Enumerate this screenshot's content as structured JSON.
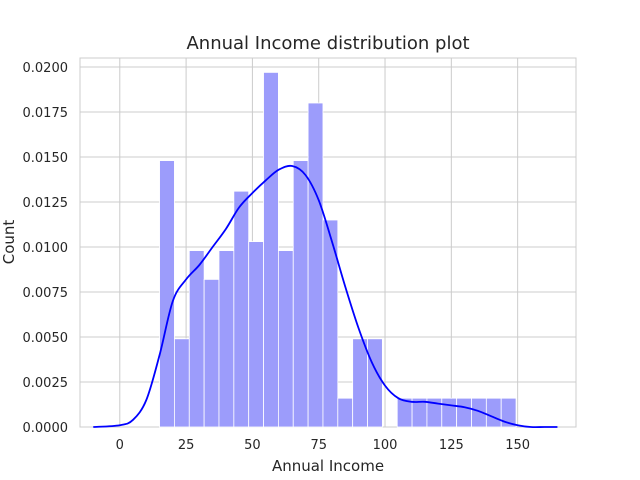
{
  "chart_data": {
    "type": "bar",
    "title": "Annual Income distribution plot",
    "xlabel": "Annual Income",
    "ylabel": "Count",
    "xlim": [
      -15,
      172
    ],
    "ylim": [
      0,
      0.0205
    ],
    "xticks": [
      0,
      25,
      50,
      75,
      100,
      125,
      150
    ],
    "xtick_labels": [
      "0",
      "25",
      "50",
      "75",
      "100",
      "125",
      "150"
    ],
    "yticks": [
      0,
      0.0025,
      0.005,
      0.0075,
      0.01,
      0.0125,
      0.015,
      0.0175,
      0.02
    ],
    "ytick_labels": [
      "0.0000",
      "0.0025",
      "0.0050",
      "0.0075",
      "0.0100",
      "0.0125",
      "0.0150",
      "0.0175",
      "0.0200"
    ],
    "grid": true,
    "histogram": {
      "bin_width": 5.6,
      "bin_start": 15,
      "densities": [
        0.0148,
        0.0049,
        0.0098,
        0.0082,
        0.0098,
        0.0131,
        0.0103,
        0.0197,
        0.0098,
        0.0148,
        0.018,
        0.0115,
        0.0016,
        0.0049,
        0.0049,
        0.0,
        0.0016,
        0.0016,
        0.0016,
        0.0016,
        0.0016,
        0.0016,
        0.0016,
        0.0016
      ],
      "color": "#9c9cfb"
    },
    "kde": {
      "x": [
        -10,
        0,
        5,
        10,
        15,
        20,
        25,
        30,
        35,
        40,
        45,
        50,
        55,
        60,
        65,
        70,
        75,
        80,
        85,
        90,
        95,
        100,
        105,
        110,
        115,
        120,
        125,
        130,
        135,
        140,
        145,
        150,
        155,
        160,
        165
      ],
      "y": [
        0.0,
        0.0001,
        0.0004,
        0.0015,
        0.004,
        0.007,
        0.0082,
        0.009,
        0.01,
        0.011,
        0.0122,
        0.013,
        0.0137,
        0.0143,
        0.0145,
        0.014,
        0.0126,
        0.0103,
        0.0078,
        0.0055,
        0.0036,
        0.0023,
        0.0016,
        0.0014,
        0.0014,
        0.0013,
        0.0012,
        0.0011,
        0.0009,
        0.0006,
        0.0003,
        0.0001,
        0.0,
        0.0,
        0.0
      ],
      "color": "#0000ff"
    }
  }
}
